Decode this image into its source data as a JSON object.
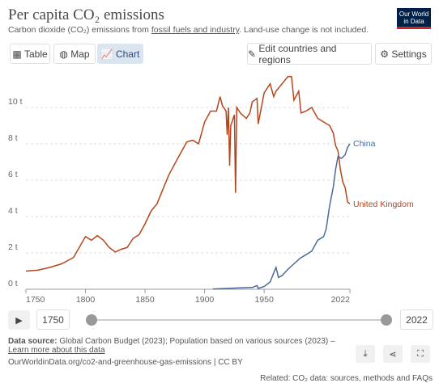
{
  "header": {
    "title": "Per capita CO₂ emissions",
    "subtitle_parts": [
      "Carbon dioxide (CO₂) emissions from ",
      "fossil fuels and industry",
      ". Land-use change is not included."
    ],
    "logo": [
      "Our World",
      "in Data"
    ]
  },
  "tabs": [
    "Table",
    "Map",
    "Chart"
  ],
  "buttons": {
    "edit": "Edit countries and regions",
    "settings": "Settings"
  },
  "chart_data": {
    "type": "line",
    "xlim": [
      1750,
      2022
    ],
    "xticks": [
      1750,
      1800,
      1850,
      1900,
      1950,
      2022
    ],
    "ylim": [
      0,
      12
    ],
    "yticks": [
      {
        "value": 0,
        "label": "0 t"
      },
      {
        "value": 2,
        "label": "2 t"
      },
      {
        "value": 4,
        "label": "4 t"
      },
      {
        "value": 6,
        "label": "6 t"
      },
      {
        "value": 8,
        "label": "8 t"
      },
      {
        "value": 10,
        "label": "10 t"
      }
    ],
    "grid": true,
    "series": [
      {
        "name": "United Kingdom",
        "color": "#b5461c",
        "x": [
          1750,
          1760,
          1770,
          1780,
          1790,
          1800,
          1805,
          1810,
          1815,
          1820,
          1825,
          1830,
          1835,
          1840,
          1845,
          1850,
          1855,
          1860,
          1865,
          1870,
          1875,
          1880,
          1885,
          1890,
          1895,
          1900,
          1905,
          1910,
          1913,
          1915,
          1918,
          1919,
          1920,
          1921,
          1922,
          1925,
          1926,
          1927,
          1930,
          1935,
          1938,
          1940,
          1944,
          1945,
          1950,
          1955,
          1958,
          1960,
          1965,
          1970,
          1973,
          1975,
          1979,
          1981,
          1985,
          1990,
          1995,
          2000,
          2005,
          2008,
          2010,
          2012,
          2014,
          2016,
          2018,
          2020,
          2022
        ],
        "values": [
          1.0,
          1.05,
          1.2,
          1.4,
          1.75,
          2.9,
          2.7,
          2.95,
          2.7,
          2.3,
          2.05,
          2.2,
          2.3,
          2.8,
          3.0,
          3.6,
          4.3,
          4.7,
          5.5,
          6.3,
          6.9,
          7.5,
          8.1,
          8.2,
          8.0,
          9.2,
          9.8,
          9.8,
          10.6,
          10.1,
          9.8,
          8.5,
          10.0,
          6.8,
          9.0,
          9.6,
          5.3,
          10.0,
          9.7,
          9.4,
          9.7,
          10.3,
          10.5,
          9.1,
          10.8,
          11.3,
          10.6,
          10.9,
          11.3,
          11.7,
          11.7,
          10.4,
          10.9,
          9.7,
          9.8,
          10.0,
          9.4,
          9.2,
          9.0,
          8.6,
          7.9,
          7.6,
          6.6,
          5.9,
          5.6,
          4.8,
          4.7
        ]
      },
      {
        "name": "China",
        "color": "#4c6a9c",
        "x": [
          1907,
          1920,
          1930,
          1940,
          1944,
          1945,
          1950,
          1955,
          1958,
          1960,
          1962,
          1965,
          1970,
          1975,
          1980,
          1985,
          1990,
          1995,
          2000,
          2002,
          2005,
          2008,
          2010,
          2012,
          2015,
          2018,
          2020,
          2022
        ],
        "values": [
          0.02,
          0.05,
          0.08,
          0.1,
          0.2,
          0.05,
          0.15,
          0.4,
          0.9,
          1.2,
          0.65,
          0.75,
          1.1,
          1.4,
          1.7,
          1.9,
          2.1,
          2.7,
          2.9,
          3.3,
          4.6,
          5.6,
          6.6,
          7.3,
          7.2,
          7.4,
          7.8,
          8.0
        ]
      }
    ]
  },
  "timeline": {
    "start": "1750",
    "end": "2022"
  },
  "footer": {
    "source_label": "Data source:",
    "source": " Global Carbon Budget (2023); Population based on various sources (2023) –",
    "learn_more": "Learn more about this data",
    "url": "OurWorldinData.org/co2-and-greenhouse-gas-emissions | CC BY",
    "related": "Related: CO₂ data: sources, methods and FAQs"
  }
}
